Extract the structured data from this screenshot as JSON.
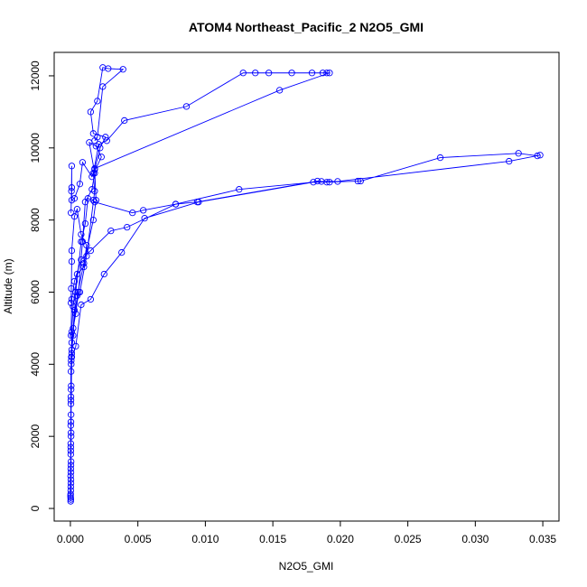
{
  "chart_data": {
    "type": "line",
    "title": "ATOM4 Northeast_Pacific_2 N2O5_GMI",
    "xlabel": "N2O5_GMI",
    "ylabel": "Altitude (m)",
    "xlim": [
      -0.0012,
      0.0362
    ],
    "ylim": [
      -350,
      12650
    ],
    "xticks": [
      0.0,
      0.005,
      0.01,
      0.015,
      0.02,
      0.025,
      0.03,
      0.035
    ],
    "xtick_labels": [
      "0.000",
      "0.005",
      "0.010",
      "0.015",
      "0.020",
      "0.025",
      "0.030",
      "0.035"
    ],
    "yticks": [
      0,
      2000,
      4000,
      6000,
      8000,
      10000,
      12000
    ],
    "ytick_labels": [
      "0",
      "2000",
      "4000",
      "6000",
      "8000",
      "10000",
      "12000"
    ],
    "series_color": "#0000ff",
    "marker": "open-circle",
    "series": [
      {
        "values": [
          [
            2e-05,
            200
          ],
          [
            3e-05,
            600
          ],
          [
            4e-05,
            1000
          ],
          [
            3e-05,
            1500
          ],
          [
            5e-05,
            2000
          ],
          [
            4e-05,
            3000
          ],
          [
            0.0001,
            4200
          ],
          [
            0.0004,
            4500
          ],
          [
            0.0008,
            5650
          ],
          [
            0.0015,
            5800
          ],
          [
            0.0025,
            6500
          ],
          [
            0.0038,
            7100
          ],
          [
            0.0055,
            8050
          ],
          [
            0.0095,
            8500
          ],
          [
            0.018,
            9050
          ],
          [
            0.019,
            9050
          ],
          [
            0.0213,
            9080
          ],
          [
            0.0215,
            9080
          ],
          [
            0.0274,
            9730
          ],
          [
            0.0332,
            9850
          ],
          [
            0.0346,
            9780
          ],
          [
            0.0348,
            9800
          ],
          [
            0.0325,
            9630
          ],
          [
            0.0198,
            9070
          ],
          [
            0.0186,
            9070
          ],
          [
            0.0125,
            8850
          ],
          [
            0.0078,
            8440
          ],
          [
            0.0042,
            7800
          ],
          [
            0.003,
            7700
          ],
          [
            0.0015,
            7150
          ],
          [
            0.0008,
            6900
          ],
          [
            0.0003,
            6300
          ],
          [
            0.0001,
            5800
          ],
          [
            5e-05,
            4800
          ]
        ]
      },
      {
        "values": [
          [
            3e-05,
            250
          ],
          [
            4e-05,
            700
          ],
          [
            5e-05,
            1300
          ],
          [
            3e-05,
            1800
          ],
          [
            4e-05,
            2400
          ],
          [
            5e-05,
            3300
          ],
          [
            6e-05,
            4100
          ],
          [
            0.0001,
            4600
          ],
          [
            0.0005,
            5900
          ],
          [
            0.001,
            6800
          ],
          [
            0.0017,
            8000
          ],
          [
            0.0019,
            8550
          ],
          [
            0.0018,
            9400
          ],
          [
            0.0022,
            10000
          ],
          [
            0.0026,
            10300
          ],
          [
            0.0017,
            10400
          ],
          [
            0.0015,
            11000
          ],
          [
            0.002,
            11300
          ],
          [
            0.0024,
            12230
          ],
          [
            0.0028,
            12200
          ],
          [
            0.0039,
            12180
          ],
          [
            0.0024,
            11700
          ],
          [
            0.002,
            10300
          ],
          [
            0.0018,
            10200
          ]
        ]
      },
      {
        "values": [
          [
            2e-05,
            300
          ],
          [
            4e-05,
            800
          ],
          [
            3e-05,
            1600
          ],
          [
            5e-05,
            2600
          ],
          [
            0.0001,
            4300
          ],
          [
            0.0003,
            5500
          ],
          [
            0.0007,
            6000
          ],
          [
            0.0012,
            7000
          ],
          [
            0.0018,
            8800
          ],
          [
            0.0017,
            9300
          ],
          [
            0.0021,
            10100
          ],
          [
            0.0027,
            10200
          ],
          [
            0.004,
            10760
          ],
          [
            0.0086,
            11150
          ],
          [
            0.0128,
            12080
          ],
          [
            0.0137,
            12080
          ],
          [
            0.0147,
            12080
          ],
          [
            0.0164,
            12080
          ],
          [
            0.0179,
            12080
          ],
          [
            0.0187,
            12080
          ],
          [
            0.019,
            12080
          ],
          [
            0.0192,
            12080
          ],
          [
            0.0155,
            11600
          ],
          [
            0.0018,
            9430
          ]
        ]
      },
      {
        "values": [
          [
            1e-05,
            350
          ],
          [
            2e-05,
            900
          ],
          [
            3e-05,
            1700
          ],
          [
            4e-05,
            2900
          ],
          [
            5e-05,
            3800
          ],
          [
            0.0002,
            5000
          ],
          [
            0.0004,
            5400
          ],
          [
            0.0006,
            6000
          ],
          [
            0.0009,
            7400
          ],
          [
            0.0011,
            8500
          ],
          [
            0.0016,
            8850
          ],
          [
            0.0018,
            9300
          ],
          [
            0.0014,
            10150
          ],
          [
            0.0019,
            10050
          ],
          [
            0.0023,
            9750
          ],
          [
            0.0016,
            9200
          ],
          [
            0.0009,
            9600
          ],
          [
            0.0007,
            9000
          ],
          [
            0.0003,
            8600
          ],
          [
            0.0001,
            8550
          ],
          [
            0.0001,
            8900
          ],
          [
            0.0001,
            9500
          ],
          [
            8e-05,
            8800
          ],
          [
            5e-05,
            8200
          ]
        ]
      },
      {
        "values": [
          [
            2e-05,
            400
          ],
          [
            3e-05,
            1100
          ],
          [
            5e-05,
            2100
          ],
          [
            4e-05,
            3100
          ],
          [
            7e-05,
            4200
          ],
          [
            0.0001,
            4400
          ],
          [
            0.0002,
            4800
          ],
          [
            0.0004,
            6000
          ],
          [
            0.0008,
            7400
          ],
          [
            0.0011,
            7900
          ],
          [
            0.0013,
            8600
          ],
          [
            0.0017,
            8550
          ],
          [
            0.0018,
            8500
          ],
          [
            0.0046,
            8200
          ],
          [
            0.0054,
            8270
          ],
          [
            0.0078,
            8440
          ],
          [
            0.0094,
            8500
          ],
          [
            0.0183,
            9080
          ],
          [
            0.0192,
            9050
          ]
        ]
      },
      {
        "values": [
          [
            3e-05,
            500
          ],
          [
            4e-05,
            1200
          ],
          [
            3e-05,
            2300
          ],
          [
            6e-05,
            3400
          ],
          [
            6e-05,
            4000
          ],
          [
            0.0001,
            4900
          ],
          [
            0.0002,
            5600
          ],
          [
            0.0005,
            6500
          ],
          [
            0.001,
            6700
          ],
          [
            0.0012,
            7300
          ],
          [
            0.0008,
            7600
          ],
          [
            0.0005,
            8300
          ],
          [
            0.0003,
            8100
          ],
          [
            0.0001,
            7150
          ],
          [
            0.0001,
            6850
          ],
          [
            7e-05,
            6100
          ],
          [
            5e-05,
            5700
          ]
        ]
      }
    ]
  }
}
